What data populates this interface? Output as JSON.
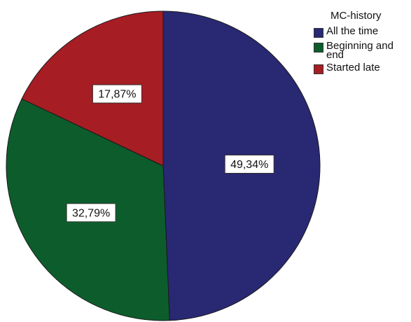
{
  "chart_data": {
    "type": "pie",
    "legend_title": "MC-history",
    "legend_placement": "top-right",
    "slices": [
      {
        "label": "All the time",
        "value": 49.34,
        "display": "49,34%",
        "color": "#282873"
      },
      {
        "label": "Beginning and end",
        "value": 32.79,
        "display": "32,79%",
        "color": "#0d5d2c"
      },
      {
        "label": "Started late",
        "value": 17.87,
        "display": "17,87%",
        "color": "#a61d24"
      }
    ]
  }
}
